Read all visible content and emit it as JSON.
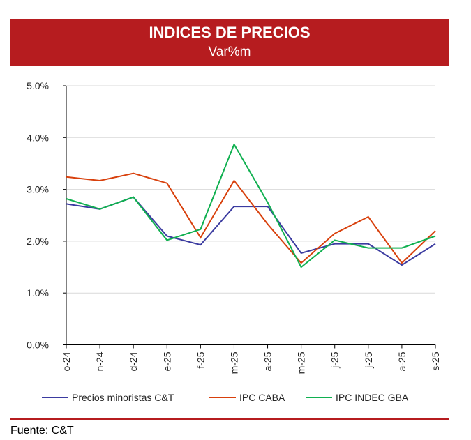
{
  "header": {
    "title": "INDICES DE PRECIOS",
    "subtitle": "Var%m"
  },
  "colors": {
    "header_bg": "#B61C1F",
    "series_ct": "#3B3BA0",
    "series_caba": "#D8400C",
    "series_indec": "#10B050",
    "grid": "#D9D9D9"
  },
  "chart_data": {
    "type": "line",
    "title": "INDICES DE PRECIOS",
    "subtitle": "Var%m",
    "xlabel": "",
    "ylabel": "",
    "categories": [
      "o-24",
      "n-24",
      "d-24",
      "e-25",
      "f-25",
      "m-25",
      "a-25",
      "m-25",
      "j-25",
      "j-25",
      "a-25",
      "s-25"
    ],
    "ylim": [
      0,
      5
    ],
    "yticks": [
      0,
      1,
      2,
      3,
      4,
      5
    ],
    "ytick_labels": [
      "0.0%",
      "1.0%",
      "2.0%",
      "3.0%",
      "4.0%",
      "5.0%"
    ],
    "grid": true,
    "legend_position": "bottom",
    "series": [
      {
        "name": "Precios minoristas C&T",
        "color": "#3B3BA0",
        "values": [
          2.72,
          2.62,
          2.85,
          2.1,
          1.93,
          2.67,
          2.67,
          1.77,
          1.95,
          1.95,
          1.54,
          1.95
        ]
      },
      {
        "name": "IPC CABA",
        "color": "#D8400C",
        "values": [
          3.24,
          3.17,
          3.31,
          3.12,
          2.07,
          3.17,
          2.33,
          1.58,
          2.15,
          2.47,
          1.58,
          2.2
        ]
      },
      {
        "name": "IPC INDEC GBA",
        "color": "#10B050",
        "values": [
          2.82,
          2.62,
          2.85,
          2.02,
          2.23,
          3.87,
          2.75,
          1.5,
          2.02,
          1.87,
          1.87,
          2.1
        ]
      }
    ]
  },
  "footer": {
    "source": "Fuente: C&T"
  }
}
